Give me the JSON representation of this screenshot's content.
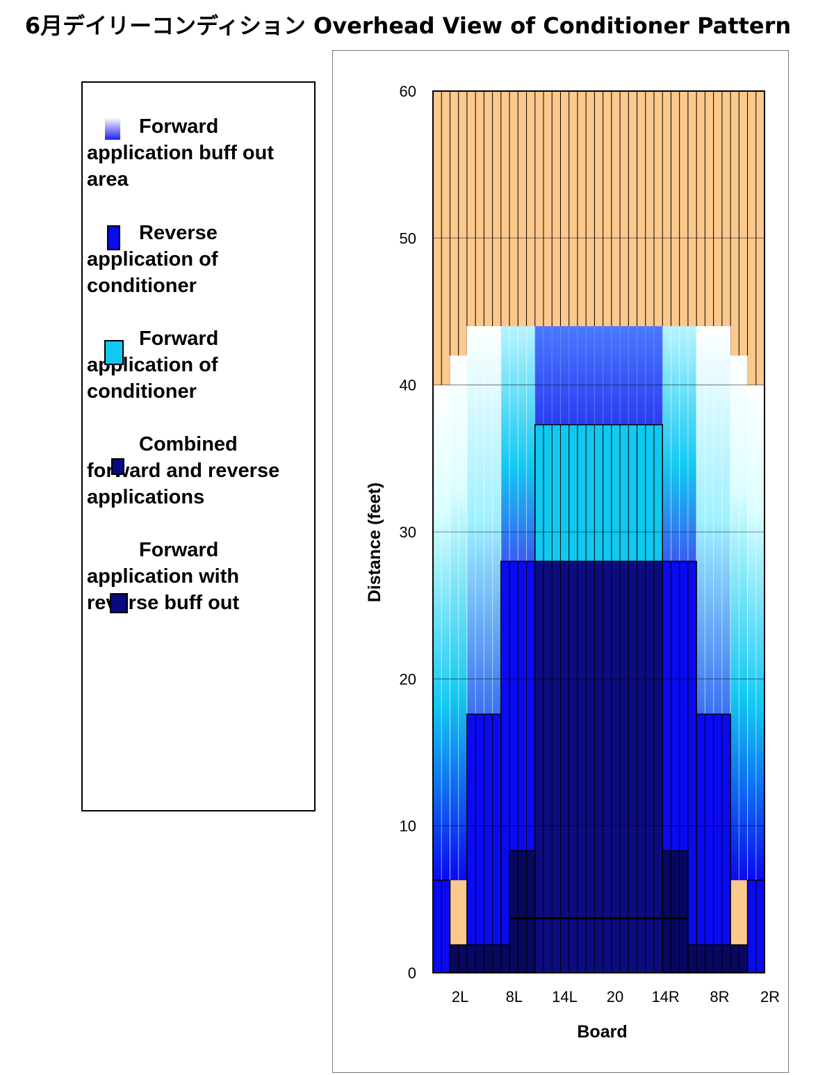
{
  "title": "6月デイリーコンディション Overhead View of Conditioner Pattern",
  "legend": [
    {
      "label": "Forward application buff out area",
      "swatch": "gradient"
    },
    {
      "label": "Reverse application of conditioner",
      "swatch": "#0a0af0"
    },
    {
      "label": "Forward application of conditioner",
      "swatch": "#10c8f0"
    },
    {
      "label": "Combined forward and reverse applications",
      "swatch": "#0a0a80"
    },
    {
      "label": "Forward application with reverse buff out",
      "swatch": "#0a0a80"
    }
  ],
  "colors": {
    "lane_wood": "#fcc88c",
    "reverse": "#0a0af0",
    "forward": "#10c8f0",
    "combined": "#0c0c80",
    "dark_combined": "#080860",
    "buff_light": "#f4ffff"
  },
  "chart_data": {
    "type": "area",
    "xlabel": "Board",
    "ylabel": "Distance (feet)",
    "ylim": [
      0,
      60
    ],
    "yticks": [
      0,
      10,
      20,
      30,
      40,
      50,
      60
    ],
    "xtick_labels": [
      "2L",
      "8L",
      "14L",
      "20",
      "14R",
      "8R",
      "2R"
    ],
    "boards": 39,
    "grid": "horizontal",
    "series": [
      {
        "name": "Forward application buff out area",
        "x_boards": [
          [
            1,
            39
          ]
        ],
        "bands": [
          {
            "boards": [
              1,
              2
            ],
            "from": 6.3,
            "to": 40
          },
          {
            "boards": [
              3,
              4
            ],
            "from": 6.3,
            "to": 42
          },
          {
            "boards": [
              5,
              8
            ],
            "from": 17.6,
            "to": 44
          },
          {
            "boards": [
              9,
              12
            ],
            "from": 28,
            "to": 44
          },
          {
            "boards": [
              28,
              31
            ],
            "from": 28,
            "to": 44
          },
          {
            "boards": [
              32,
              35
            ],
            "from": 17.6,
            "to": 44
          },
          {
            "boards": [
              36,
              37
            ],
            "from": 6.3,
            "to": 42
          },
          {
            "boards": [
              38,
              39
            ],
            "from": 6.3,
            "to": 40
          }
        ]
      },
      {
        "name": "Reverse application of conditioner",
        "bands": [
          {
            "boards": [
              13,
              27
            ],
            "from": 37.3,
            "to": 44
          },
          {
            "boards": [
              1,
              2
            ],
            "from": 0,
            "to": 6.3
          },
          {
            "boards": [
              38,
              39
            ],
            "from": 0,
            "to": 6.3
          },
          {
            "boards": [
              5,
              8
            ],
            "from": 0,
            "to": 17.6
          },
          {
            "boards": [
              32,
              35
            ],
            "from": 0,
            "to": 17.6
          },
          {
            "boards": [
              9,
              12
            ],
            "from": 0,
            "to": 28
          },
          {
            "boards": [
              28,
              31
            ],
            "from": 0,
            "to": 28
          }
        ]
      },
      {
        "name": "Forward application of conditioner",
        "bands": [
          {
            "boards": [
              13,
              27
            ],
            "from": 28,
            "to": 37.3
          }
        ]
      },
      {
        "name": "Combined forward and reverse applications",
        "bands": [
          {
            "boards": [
              13,
              27
            ],
            "from": 0,
            "to": 28
          },
          {
            "boards": [
              3,
              37
            ],
            "from": 0,
            "to": 1.9
          },
          {
            "boards": [
              10,
              30
            ],
            "from": 0,
            "to": 8.3
          },
          {
            "boards": [
              10,
              30
            ],
            "from": 0,
            "to": 3.7
          }
        ]
      }
    ],
    "lane_oil_end": 60
  }
}
